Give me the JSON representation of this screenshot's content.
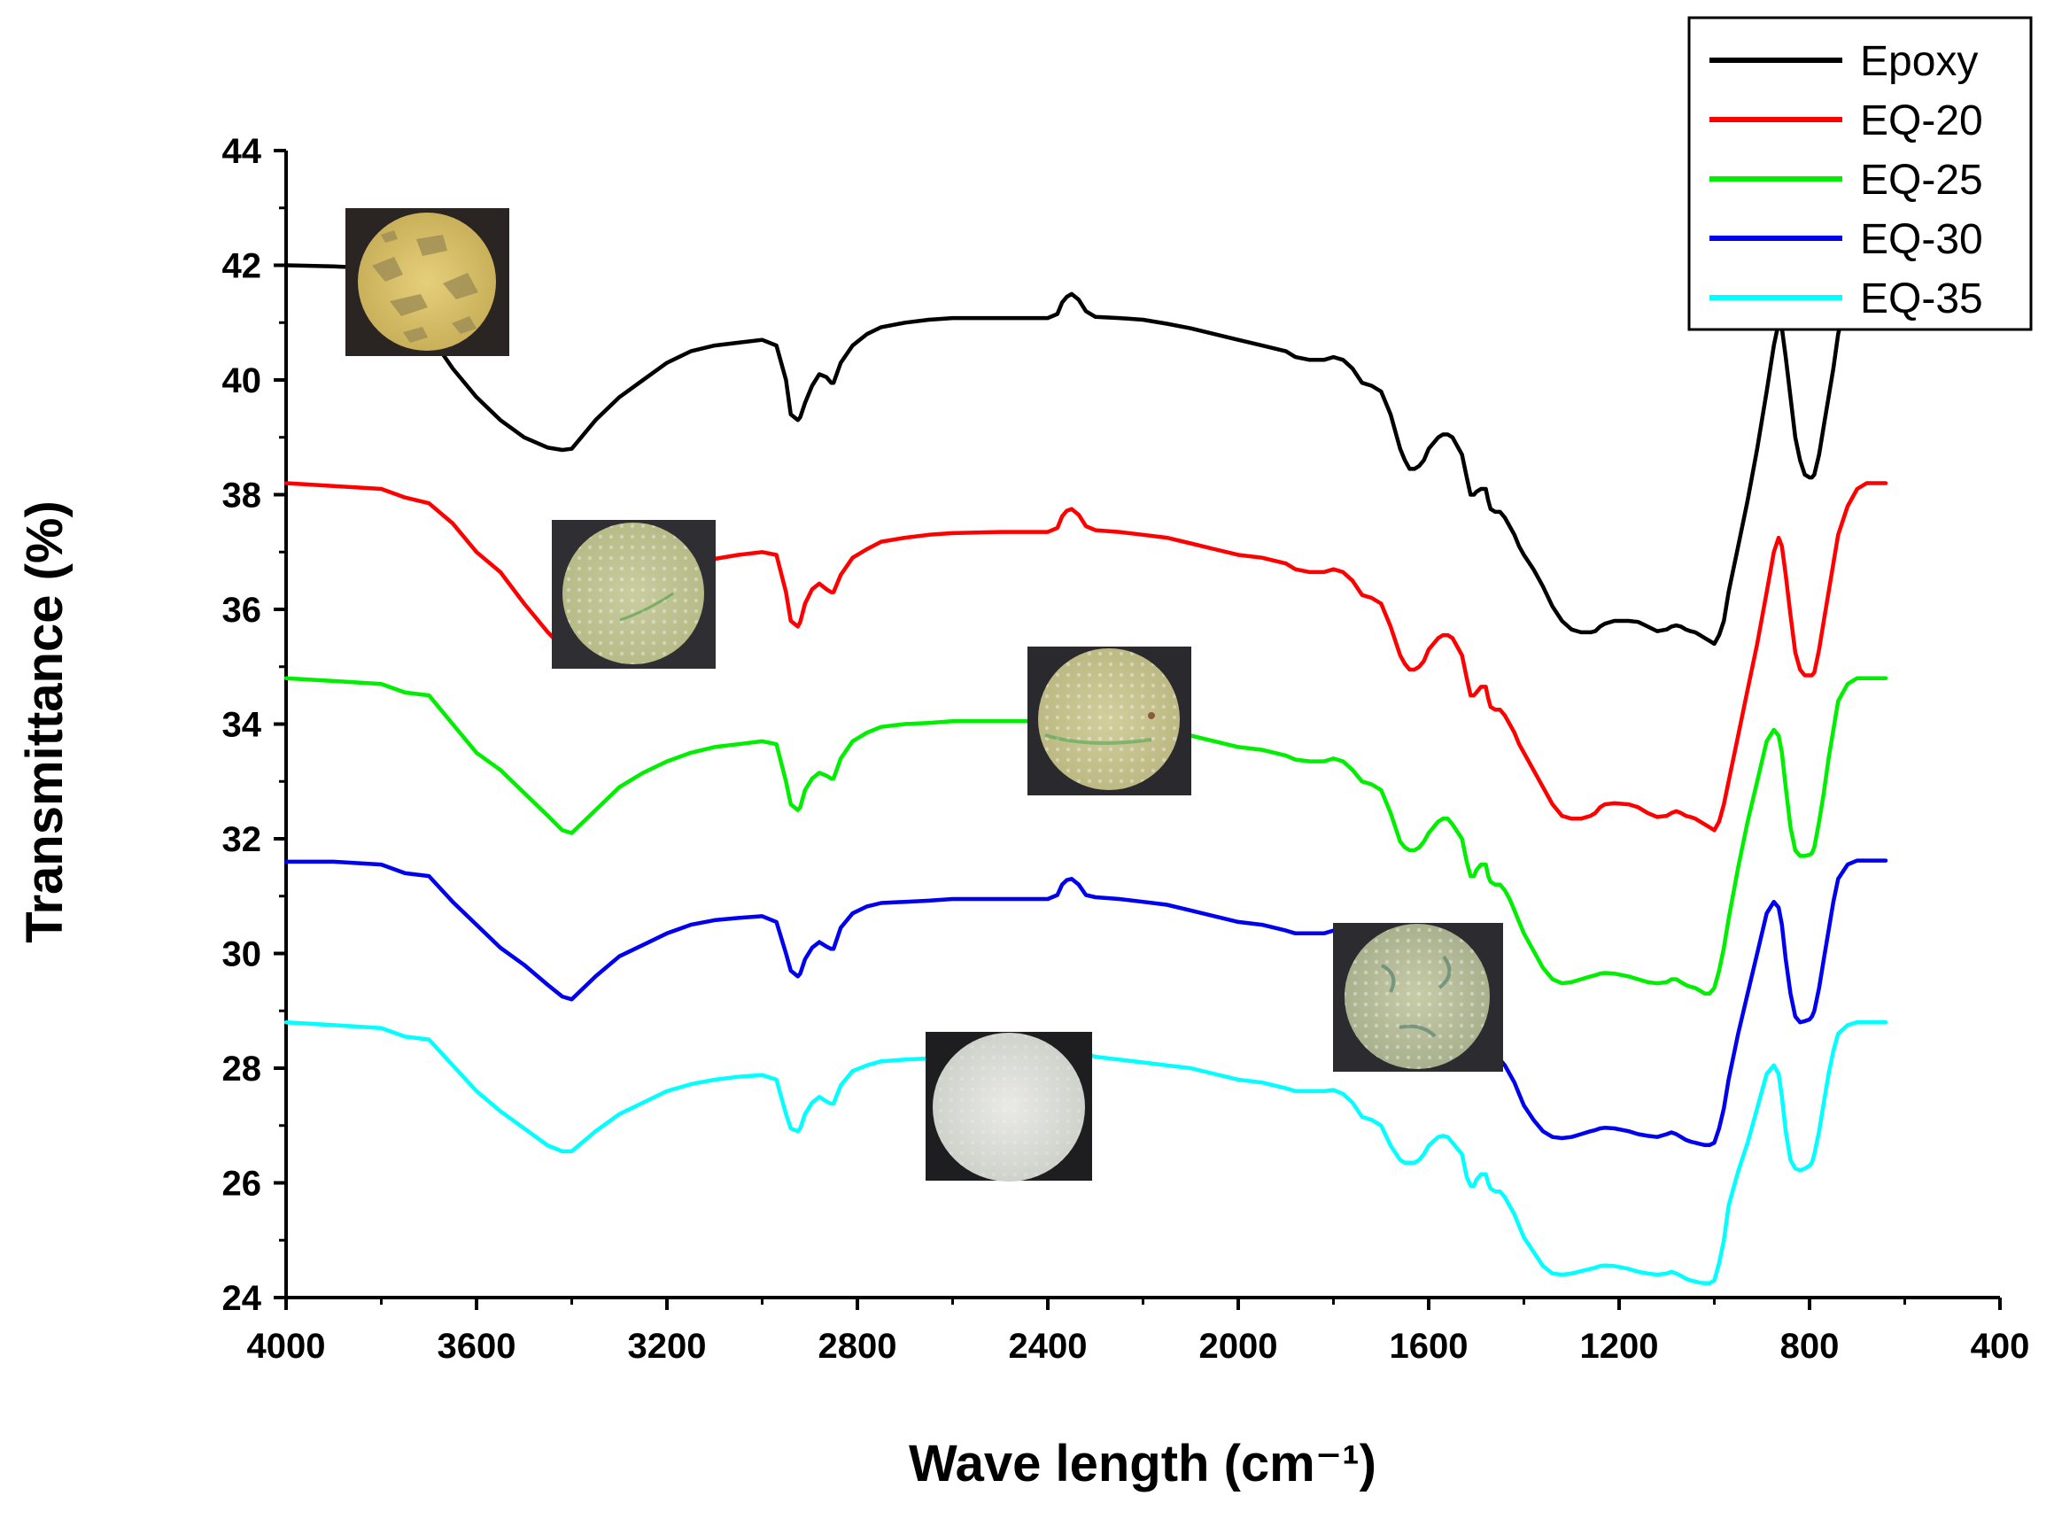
{
  "chart_data": {
    "type": "line",
    "title": "",
    "xlabel": "Wave length (cm⁻¹)",
    "ylabel": "Transmittance (%)",
    "xlim": [
      4000,
      400
    ],
    "ylim": [
      24,
      44
    ],
    "x_reversed": true,
    "x_ticks": [
      4000,
      3600,
      3200,
      2800,
      2400,
      2000,
      1600,
      1200,
      800,
      400
    ],
    "x_tick_labels": [
      "4000",
      "3600",
      "3200",
      "2800",
      "2400",
      "2000",
      "1600",
      "1200",
      "800",
      "400"
    ],
    "y_ticks": [
      24,
      26,
      28,
      30,
      32,
      34,
      36,
      38,
      40,
      42,
      44
    ],
    "y_tick_labels": [
      "24",
      "26",
      "28",
      "30",
      "32",
      "34",
      "36",
      "38",
      "40",
      "42",
      "44"
    ],
    "legend_position": "top-right",
    "grid": false,
    "x": [
      4000,
      3900,
      3800,
      3750,
      3700,
      3650,
      3600,
      3550,
      3500,
      3450,
      3420,
      3400,
      3350,
      3300,
      3250,
      3200,
      3150,
      3100,
      3050,
      3000,
      2970,
      2950,
      2940,
      2925,
      2920,
      2910,
      2895,
      2880,
      2865,
      2855,
      2850,
      2835,
      2810,
      2780,
      2750,
      2700,
      2650,
      2600,
      2500,
      2400,
      2380,
      2370,
      2360,
      2350,
      2335,
      2320,
      2300,
      2250,
      2200,
      2150,
      2100,
      2050,
      2000,
      1950,
      1900,
      1880,
      1850,
      1820,
      1800,
      1780,
      1760,
      1740,
      1720,
      1700,
      1680,
      1660,
      1650,
      1640,
      1630,
      1620,
      1610,
      1600,
      1580,
      1570,
      1560,
      1550,
      1530,
      1520,
      1512,
      1505,
      1500,
      1490,
      1480,
      1475,
      1470,
      1460,
      1455,
      1450,
      1440,
      1430,
      1420,
      1410,
      1400,
      1380,
      1360,
      1340,
      1320,
      1300,
      1280,
      1260,
      1250,
      1240,
      1230,
      1210,
      1180,
      1160,
      1140,
      1120,
      1100,
      1090,
      1080,
      1070,
      1060,
      1050,
      1040,
      1030,
      1020,
      1010,
      1000,
      990,
      980,
      970,
      950,
      930,
      910,
      890,
      875,
      865,
      858,
      850,
      840,
      830,
      820,
      810,
      800,
      795,
      790,
      780,
      770,
      760,
      750,
      740,
      720,
      700,
      680,
      660,
      640
    ],
    "series": [
      {
        "name": "Epoxy",
        "color": "#000000",
        "y": [
          42.0,
          41.98,
          41.95,
          41.0,
          40.8,
          40.2,
          39.7,
          39.3,
          39.0,
          38.82,
          38.78,
          38.8,
          39.3,
          39.7,
          40.0,
          40.3,
          40.5,
          40.6,
          40.65,
          40.7,
          40.6,
          40.0,
          39.4,
          39.3,
          39.35,
          39.6,
          39.9,
          40.1,
          40.05,
          39.95,
          39.95,
          40.3,
          40.6,
          40.8,
          40.92,
          41.0,
          41.05,
          41.08,
          41.08,
          41.08,
          41.15,
          41.35,
          41.45,
          41.5,
          41.4,
          41.2,
          41.1,
          41.08,
          41.05,
          40.98,
          40.9,
          40.8,
          40.7,
          40.6,
          40.5,
          40.4,
          40.35,
          40.35,
          40.4,
          40.35,
          40.2,
          39.95,
          39.9,
          39.8,
          39.4,
          38.8,
          38.6,
          38.45,
          38.45,
          38.5,
          38.6,
          38.8,
          39.0,
          39.05,
          39.05,
          39.0,
          38.7,
          38.3,
          38.0,
          38.0,
          38.05,
          38.1,
          38.1,
          37.9,
          37.75,
          37.7,
          37.7,
          37.7,
          37.6,
          37.45,
          37.3,
          37.1,
          36.95,
          36.7,
          36.4,
          36.05,
          35.8,
          35.65,
          35.6,
          35.6,
          35.62,
          35.7,
          35.75,
          35.8,
          35.8,
          35.78,
          35.7,
          35.62,
          35.65,
          35.7,
          35.72,
          35.7,
          35.65,
          35.62,
          35.6,
          35.55,
          35.5,
          35.45,
          35.4,
          35.55,
          35.8,
          36.3,
          37.1,
          37.9,
          38.8,
          39.8,
          40.6,
          41.0,
          40.9,
          40.4,
          39.7,
          39.0,
          38.6,
          38.35,
          38.3,
          38.3,
          38.35,
          38.7,
          39.2,
          39.7,
          40.2,
          40.8,
          41.5,
          42.0,
          42.3,
          42.4,
          42.4
        ]
      },
      {
        "name": "EQ-20",
        "color": "#ff0000",
        "y": [
          38.2,
          38.15,
          38.1,
          37.95,
          37.85,
          37.5,
          37.0,
          36.65,
          36.1,
          35.6,
          35.35,
          35.2,
          35.6,
          36.0,
          36.3,
          36.55,
          36.75,
          36.88,
          36.95,
          37.0,
          36.95,
          36.3,
          35.8,
          35.7,
          35.78,
          36.1,
          36.35,
          36.45,
          36.35,
          36.3,
          36.3,
          36.6,
          36.9,
          37.05,
          37.18,
          37.25,
          37.3,
          37.33,
          37.35,
          37.35,
          37.42,
          37.62,
          37.72,
          37.75,
          37.65,
          37.45,
          37.38,
          37.35,
          37.3,
          37.25,
          37.15,
          37.05,
          36.95,
          36.9,
          36.8,
          36.7,
          36.65,
          36.65,
          36.7,
          36.65,
          36.5,
          36.25,
          36.2,
          36.1,
          35.7,
          35.2,
          35.05,
          34.95,
          34.95,
          35.0,
          35.1,
          35.3,
          35.5,
          35.55,
          35.55,
          35.5,
          35.2,
          34.8,
          34.5,
          34.5,
          34.55,
          34.65,
          34.65,
          34.45,
          34.3,
          34.25,
          34.25,
          34.25,
          34.15,
          34.0,
          33.85,
          33.65,
          33.5,
          33.2,
          32.9,
          32.6,
          32.4,
          32.35,
          32.35,
          32.4,
          32.45,
          32.55,
          32.6,
          32.62,
          32.6,
          32.55,
          32.45,
          32.38,
          32.4,
          32.45,
          32.48,
          32.45,
          32.4,
          32.38,
          32.35,
          32.3,
          32.25,
          32.2,
          32.15,
          32.3,
          32.6,
          33.0,
          33.8,
          34.6,
          35.4,
          36.3,
          37.0,
          37.25,
          37.1,
          36.6,
          35.9,
          35.25,
          34.95,
          34.85,
          34.85,
          34.85,
          34.9,
          35.3,
          35.8,
          36.3,
          36.8,
          37.3,
          37.8,
          38.1,
          38.2,
          38.2,
          38.2
        ]
      },
      {
        "name": "EQ-25",
        "color": "#00ee00",
        "y": [
          34.8,
          34.75,
          34.7,
          34.55,
          34.5,
          34.0,
          33.5,
          33.2,
          32.8,
          32.4,
          32.15,
          32.1,
          32.5,
          32.9,
          33.15,
          33.35,
          33.5,
          33.6,
          33.65,
          33.7,
          33.65,
          33.0,
          32.6,
          32.5,
          32.55,
          32.85,
          33.05,
          33.15,
          33.1,
          33.05,
          33.05,
          33.4,
          33.7,
          33.85,
          33.95,
          34.0,
          34.02,
          34.05,
          34.05,
          34.05,
          34.1,
          34.3,
          34.4,
          34.45,
          34.35,
          34.15,
          34.08,
          34.0,
          33.95,
          33.88,
          33.8,
          33.7,
          33.6,
          33.55,
          33.45,
          33.38,
          33.35,
          33.35,
          33.4,
          33.35,
          33.2,
          33.0,
          32.95,
          32.85,
          32.45,
          31.95,
          31.85,
          31.8,
          31.8,
          31.85,
          31.95,
          32.1,
          32.3,
          32.35,
          32.35,
          32.25,
          32.0,
          31.6,
          31.35,
          31.35,
          31.45,
          31.55,
          31.55,
          31.35,
          31.25,
          31.2,
          31.2,
          31.2,
          31.1,
          30.95,
          30.75,
          30.55,
          30.35,
          30.05,
          29.75,
          29.55,
          29.48,
          29.5,
          29.55,
          29.6,
          29.62,
          29.65,
          29.66,
          29.65,
          29.6,
          29.55,
          29.5,
          29.48,
          29.5,
          29.55,
          29.55,
          29.5,
          29.45,
          29.42,
          29.4,
          29.35,
          29.3,
          29.3,
          29.4,
          29.7,
          30.1,
          30.6,
          31.5,
          32.3,
          33.0,
          33.7,
          33.9,
          33.8,
          33.5,
          32.9,
          32.2,
          31.8,
          31.7,
          31.7,
          31.72,
          31.75,
          31.85,
          32.3,
          32.8,
          33.4,
          33.9,
          34.4,
          34.7,
          34.8,
          34.8,
          34.8,
          34.8
        ]
      },
      {
        "name": "EQ-30",
        "color": "#0000ee",
        "y": [
          31.6,
          31.6,
          31.55,
          31.4,
          31.35,
          30.9,
          30.5,
          30.1,
          29.8,
          29.45,
          29.25,
          29.2,
          29.6,
          29.95,
          30.15,
          30.35,
          30.5,
          30.58,
          30.62,
          30.65,
          30.55,
          30.0,
          29.7,
          29.6,
          29.65,
          29.9,
          30.1,
          30.2,
          30.12,
          30.08,
          30.08,
          30.45,
          30.7,
          30.82,
          30.88,
          30.9,
          30.92,
          30.95,
          30.95,
          30.95,
          31.02,
          31.2,
          31.28,
          31.3,
          31.2,
          31.02,
          30.98,
          30.95,
          30.9,
          30.85,
          30.75,
          30.65,
          30.55,
          30.5,
          30.4,
          30.35,
          30.35,
          30.35,
          30.4,
          30.35,
          30.2,
          29.95,
          29.9,
          29.8,
          29.4,
          28.9,
          28.75,
          28.7,
          28.7,
          28.75,
          28.85,
          29.0,
          29.2,
          29.25,
          29.25,
          29.15,
          28.9,
          28.5,
          28.3,
          28.3,
          28.35,
          28.45,
          28.45,
          28.3,
          28.2,
          28.15,
          28.15,
          28.15,
          28.05,
          27.9,
          27.75,
          27.55,
          27.35,
          27.1,
          26.9,
          26.8,
          26.78,
          26.8,
          26.85,
          26.9,
          26.92,
          26.95,
          26.96,
          26.95,
          26.9,
          26.85,
          26.82,
          26.8,
          26.85,
          26.88,
          26.85,
          26.8,
          26.75,
          26.72,
          26.7,
          26.68,
          26.66,
          26.66,
          26.7,
          26.95,
          27.3,
          27.8,
          28.6,
          29.3,
          30.0,
          30.7,
          30.9,
          30.8,
          30.5,
          29.9,
          29.3,
          28.9,
          28.8,
          28.82,
          28.85,
          28.9,
          29.0,
          29.4,
          29.9,
          30.4,
          30.9,
          31.3,
          31.55,
          31.62,
          31.62,
          31.62,
          31.62
        ]
      },
      {
        "name": "EQ-35",
        "color": "#00ffff",
        "y": [
          28.8,
          28.75,
          28.7,
          28.55,
          28.5,
          28.05,
          27.6,
          27.25,
          26.95,
          26.65,
          26.55,
          26.55,
          26.9,
          27.2,
          27.4,
          27.6,
          27.72,
          27.8,
          27.85,
          27.88,
          27.8,
          27.2,
          26.95,
          26.9,
          26.95,
          27.2,
          27.4,
          27.5,
          27.42,
          27.38,
          27.38,
          27.7,
          27.95,
          28.05,
          28.12,
          28.15,
          28.17,
          28.2,
          28.2,
          28.2,
          28.25,
          28.4,
          28.47,
          28.5,
          28.4,
          28.25,
          28.2,
          28.15,
          28.1,
          28.05,
          28.0,
          27.9,
          27.8,
          27.75,
          27.65,
          27.6,
          27.6,
          27.6,
          27.62,
          27.55,
          27.4,
          27.15,
          27.1,
          27.0,
          26.65,
          26.4,
          26.35,
          26.35,
          26.35,
          26.4,
          26.5,
          26.65,
          26.8,
          26.82,
          26.8,
          26.7,
          26.5,
          26.1,
          25.95,
          25.95,
          26.05,
          26.15,
          26.15,
          26.0,
          25.9,
          25.85,
          25.85,
          25.85,
          25.75,
          25.6,
          25.45,
          25.25,
          25.05,
          24.8,
          24.55,
          24.42,
          24.4,
          24.42,
          24.46,
          24.5,
          24.52,
          24.55,
          24.56,
          24.55,
          24.5,
          24.45,
          24.42,
          24.4,
          24.42,
          24.45,
          24.42,
          24.38,
          24.33,
          24.3,
          24.28,
          24.26,
          24.25,
          24.25,
          24.3,
          24.6,
          25.0,
          25.6,
          26.2,
          26.7,
          27.3,
          27.9,
          28.05,
          27.9,
          27.5,
          26.9,
          26.4,
          26.25,
          26.22,
          26.25,
          26.3,
          26.35,
          26.5,
          26.9,
          27.4,
          27.9,
          28.3,
          28.6,
          28.75,
          28.8,
          28.8,
          28.8,
          28.8
        ]
      }
    ]
  }
}
